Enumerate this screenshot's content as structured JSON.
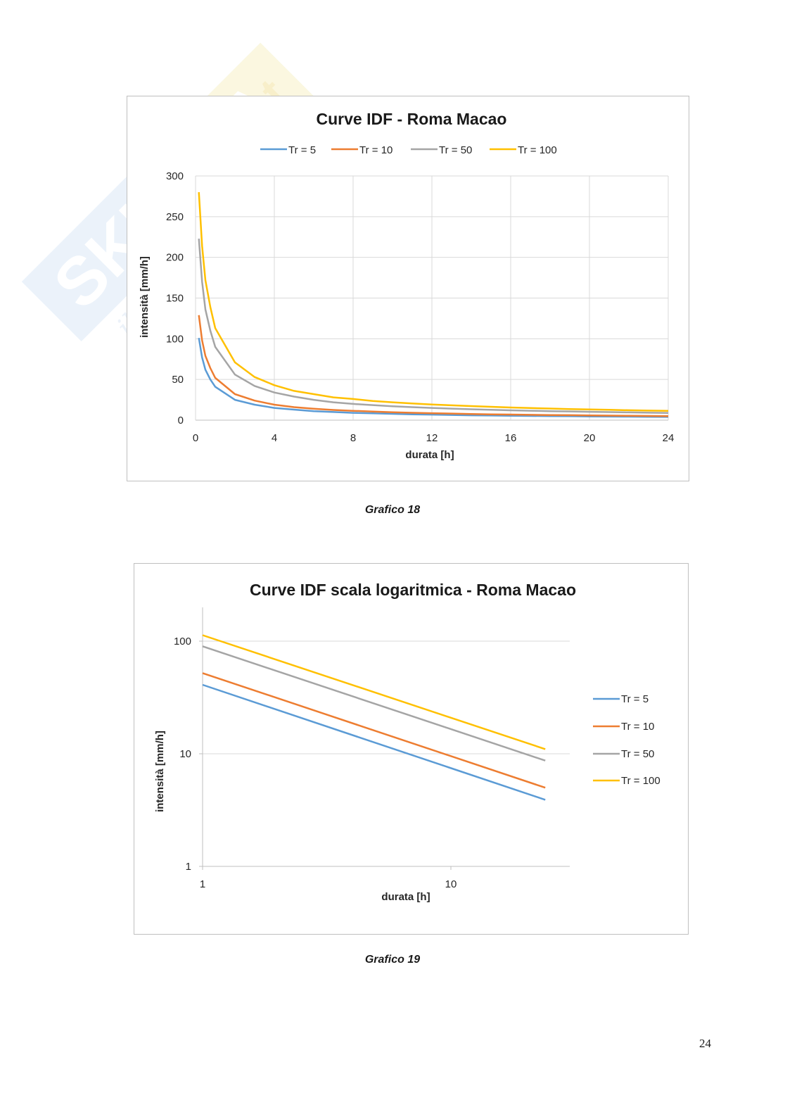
{
  "watermark": {
    "brand": "Skuola.net",
    "tagline": "il portale dello studente"
  },
  "colors": {
    "tr5": "#5b9bd5",
    "tr10": "#ed7d31",
    "tr50": "#a5a5a5",
    "tr100": "#ffc000",
    "grid": "#d9d9d9",
    "axis": "#bfbfbf"
  },
  "captions": {
    "chart1": "Grafico 18",
    "chart2": "Grafico 19"
  },
  "page_number": "24",
  "chart_data": [
    {
      "type": "line",
      "title": "Curve IDF - Roma Macao",
      "xlabel": "durata [h]",
      "ylabel": "intensità [mm/h]",
      "xlim": [
        0,
        24
      ],
      "ylim": [
        0,
        300
      ],
      "xticks": [
        0,
        4,
        8,
        12,
        16,
        20,
        24
      ],
      "yticks": [
        0,
        50,
        100,
        150,
        200,
        250,
        300
      ],
      "grid": true,
      "legend_position": "top",
      "x": [
        0.167,
        0.333,
        0.5,
        0.75,
        1,
        2,
        3,
        4,
        5,
        6,
        7,
        8,
        9,
        10,
        11,
        12,
        13,
        14,
        15,
        16,
        17,
        18,
        19,
        20,
        21,
        22,
        23,
        24
      ],
      "series": [
        {
          "name": "Tr = 5",
          "color": "#5b9bd5",
          "values": [
            101,
            77,
            62,
            50,
            41,
            25,
            19,
            15,
            13,
            11,
            10,
            9,
            8.5,
            7.8,
            7.2,
            6.8,
            6.4,
            6.0,
            5.7,
            5.4,
            5.2,
            5.0,
            4.8,
            4.6,
            4.4,
            4.3,
            4.1,
            4.0
          ]
        },
        {
          "name": "Tr = 10",
          "color": "#ed7d31",
          "values": [
            129,
            98,
            79,
            64,
            52,
            32,
            24,
            19,
            16,
            14,
            12.5,
            11.5,
            10.6,
            9.8,
            9.1,
            8.6,
            8.1,
            7.6,
            7.2,
            6.9,
            6.6,
            6.3,
            6.1,
            5.8,
            5.6,
            5.4,
            5.2,
            5.0
          ]
        },
        {
          "name": "Tr = 50",
          "color": "#a5a5a5",
          "values": [
            223,
            170,
            136,
            110,
            90,
            56,
            42,
            34,
            29,
            25,
            22,
            20,
            18.5,
            17,
            16,
            15,
            14.2,
            13.4,
            12.7,
            12.1,
            11.6,
            11.1,
            10.7,
            10.3,
            9.9,
            9.6,
            9.2,
            8.9
          ]
        },
        {
          "name": "Tr = 100",
          "color": "#ffc000",
          "values": [
            280,
            214,
            172,
            139,
            113,
            71,
            53,
            43,
            36,
            32,
            28,
            26,
            23.5,
            22,
            20.5,
            19.3,
            18.2,
            17.3,
            16.4,
            15.6,
            14.9,
            14.3,
            13.7,
            13.2,
            12.7,
            12.2,
            11.8,
            11.4
          ]
        }
      ]
    },
    {
      "type": "line",
      "title": "Curve IDF scala logaritmica - Roma Macao",
      "xlabel": "durata [h]",
      "ylabel": "intensità [mm/h]",
      "xscale": "log",
      "yscale": "log",
      "xlim": [
        1,
        30
      ],
      "ylim": [
        1,
        200
      ],
      "xticks": [
        1,
        10
      ],
      "yticks": [
        1,
        10,
        100
      ],
      "grid": true,
      "legend_position": "right",
      "x": [
        1,
        24
      ],
      "series": [
        {
          "name": "Tr =  5",
          "color": "#5b9bd5",
          "values": [
            41,
            3.9
          ]
        },
        {
          "name": "Tr = 10",
          "color": "#ed7d31",
          "values": [
            52,
            5.0
          ]
        },
        {
          "name": "Tr = 50",
          "color": "#a5a5a5",
          "values": [
            90,
            8.7
          ]
        },
        {
          "name": "Tr = 100",
          "color": "#ffc000",
          "values": [
            113,
            11
          ]
        }
      ]
    }
  ]
}
